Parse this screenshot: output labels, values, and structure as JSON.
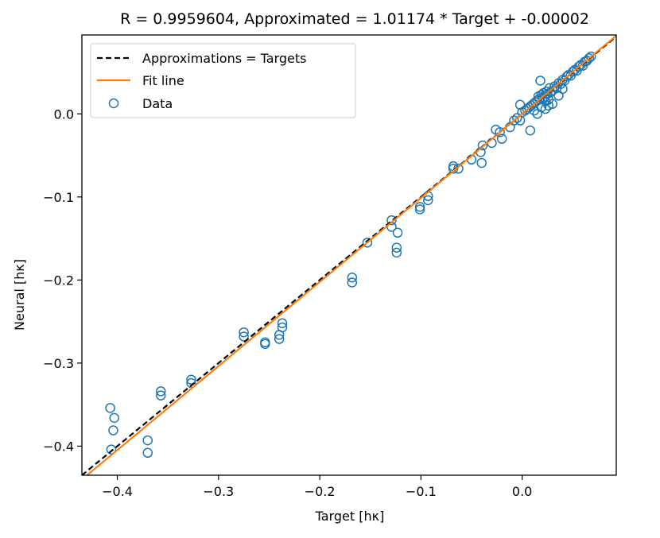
{
  "chart_data": {
    "type": "scatter",
    "title": "R = 0.9959604, Approximated = 1.01174 * Target + -0.00002",
    "xlabel": "Target [hκ]",
    "ylabel": "Neural [hκ]",
    "xlim": [
      -0.435,
      0.093
    ],
    "ylim": [
      -0.435,
      0.095
    ],
    "xticks": [
      -0.4,
      -0.3,
      -0.2,
      -0.1,
      0.0
    ],
    "xtick_labels": [
      "−0.4",
      "−0.3",
      "−0.2",
      "−0.1",
      "0.0"
    ],
    "yticks": [
      -0.4,
      -0.3,
      -0.2,
      -0.1,
      0.0
    ],
    "ytick_labels": [
      "−0.4",
      "−0.3",
      "−0.2",
      "−0.1",
      "0.0"
    ],
    "grid": false,
    "legend": {
      "placement": "top-left",
      "entries": [
        "Approximations = Targets",
        "Fit line",
        "Data"
      ]
    },
    "colors": {
      "data": "#1f77b4",
      "fit": "#ff7f0e",
      "identity": "#000000"
    },
    "lines": [
      {
        "name": "Approximations = Targets",
        "slope": 1.0,
        "intercept": 0.0,
        "style": "dashed"
      },
      {
        "name": "Fit line",
        "slope": 1.01174,
        "intercept": -2e-05,
        "style": "solid"
      }
    ],
    "series": [
      {
        "name": "Data",
        "marker": "open-circle",
        "points": [
          [
            -0.407,
            -0.354
          ],
          [
            -0.406,
            -0.404
          ],
          [
            -0.404,
            -0.381
          ],
          [
            -0.403,
            -0.366
          ],
          [
            -0.37,
            -0.393
          ],
          [
            -0.37,
            -0.408
          ],
          [
            -0.357,
            -0.334
          ],
          [
            -0.357,
            -0.339
          ],
          [
            -0.327,
            -0.32
          ],
          [
            -0.327,
            -0.324
          ],
          [
            -0.275,
            -0.263
          ],
          [
            -0.275,
            -0.268
          ],
          [
            -0.254,
            -0.275
          ],
          [
            -0.254,
            -0.277
          ],
          [
            -0.24,
            -0.266
          ],
          [
            -0.24,
            -0.271
          ],
          [
            -0.237,
            -0.252
          ],
          [
            -0.237,
            -0.257
          ],
          [
            -0.168,
            -0.197
          ],
          [
            -0.168,
            -0.203
          ],
          [
            -0.153,
            -0.155
          ],
          [
            -0.129,
            -0.128
          ],
          [
            -0.129,
            -0.136
          ],
          [
            -0.124,
            -0.161
          ],
          [
            -0.124,
            -0.167
          ],
          [
            -0.123,
            -0.143
          ],
          [
            -0.101,
            -0.112
          ],
          [
            -0.101,
            -0.115
          ],
          [
            -0.093,
            -0.099
          ],
          [
            -0.093,
            -0.104
          ],
          [
            -0.068,
            -0.063
          ],
          [
            -0.068,
            -0.066
          ],
          [
            -0.063,
            -0.066
          ],
          [
            -0.05,
            -0.055
          ],
          [
            -0.041,
            -0.046
          ],
          [
            -0.04,
            -0.059
          ],
          [
            -0.039,
            -0.038
          ],
          [
            -0.03,
            -0.035
          ],
          [
            -0.026,
            -0.019
          ],
          [
            -0.022,
            -0.022
          ],
          [
            -0.02,
            -0.03
          ],
          [
            -0.012,
            -0.016
          ],
          [
            -0.008,
            -0.008
          ],
          [
            -0.005,
            -0.005
          ],
          [
            -0.002,
            -0.008
          ],
          [
            -0.002,
            0.011
          ],
          [
            0.0,
            0.002
          ],
          [
            0.003,
            0.004
          ],
          [
            0.005,
            0.006
          ],
          [
            0.007,
            0.008
          ],
          [
            0.008,
            -0.02
          ],
          [
            0.009,
            0.01
          ],
          [
            0.011,
            0.012
          ],
          [
            0.013,
            0.014
          ],
          [
            0.015,
            0.016
          ],
          [
            0.016,
            0.021
          ],
          [
            0.017,
            0.018
          ],
          [
            0.018,
            0.04
          ],
          [
            0.019,
            0.023
          ],
          [
            0.02,
            0.019
          ],
          [
            0.021,
            0.025
          ],
          [
            0.022,
            0.02
          ],
          [
            0.023,
            0.015
          ],
          [
            0.024,
            0.027
          ],
          [
            0.025,
            0.024
          ],
          [
            0.026,
            0.017
          ],
          [
            0.027,
            0.031
          ],
          [
            0.028,
            0.026
          ],
          [
            0.03,
            0.028
          ],
          [
            0.032,
            0.033
          ],
          [
            0.034,
            0.031
          ],
          [
            0.036,
            0.037
          ],
          [
            0.038,
            0.036
          ],
          [
            0.04,
            0.041
          ],
          [
            0.042,
            0.04
          ],
          [
            0.044,
            0.045
          ],
          [
            0.046,
            0.047
          ],
          [
            0.048,
            0.046
          ],
          [
            0.05,
            0.051
          ],
          [
            0.052,
            0.053
          ],
          [
            0.054,
            0.052
          ],
          [
            0.056,
            0.057
          ],
          [
            0.058,
            0.059
          ],
          [
            0.06,
            0.058
          ],
          [
            0.062,
            0.063
          ],
          [
            0.064,
            0.064
          ],
          [
            0.066,
            0.067
          ],
          [
            0.068,
            0.069
          ],
          [
            0.023,
            0.006
          ],
          [
            0.03,
            0.012
          ],
          [
            0.036,
            0.022
          ],
          [
            0.012,
            0.004
          ],
          [
            0.015,
            0.0
          ],
          [
            0.019,
            0.008
          ],
          [
            0.026,
            0.01
          ],
          [
            0.04,
            0.03
          ]
        ]
      }
    ]
  }
}
